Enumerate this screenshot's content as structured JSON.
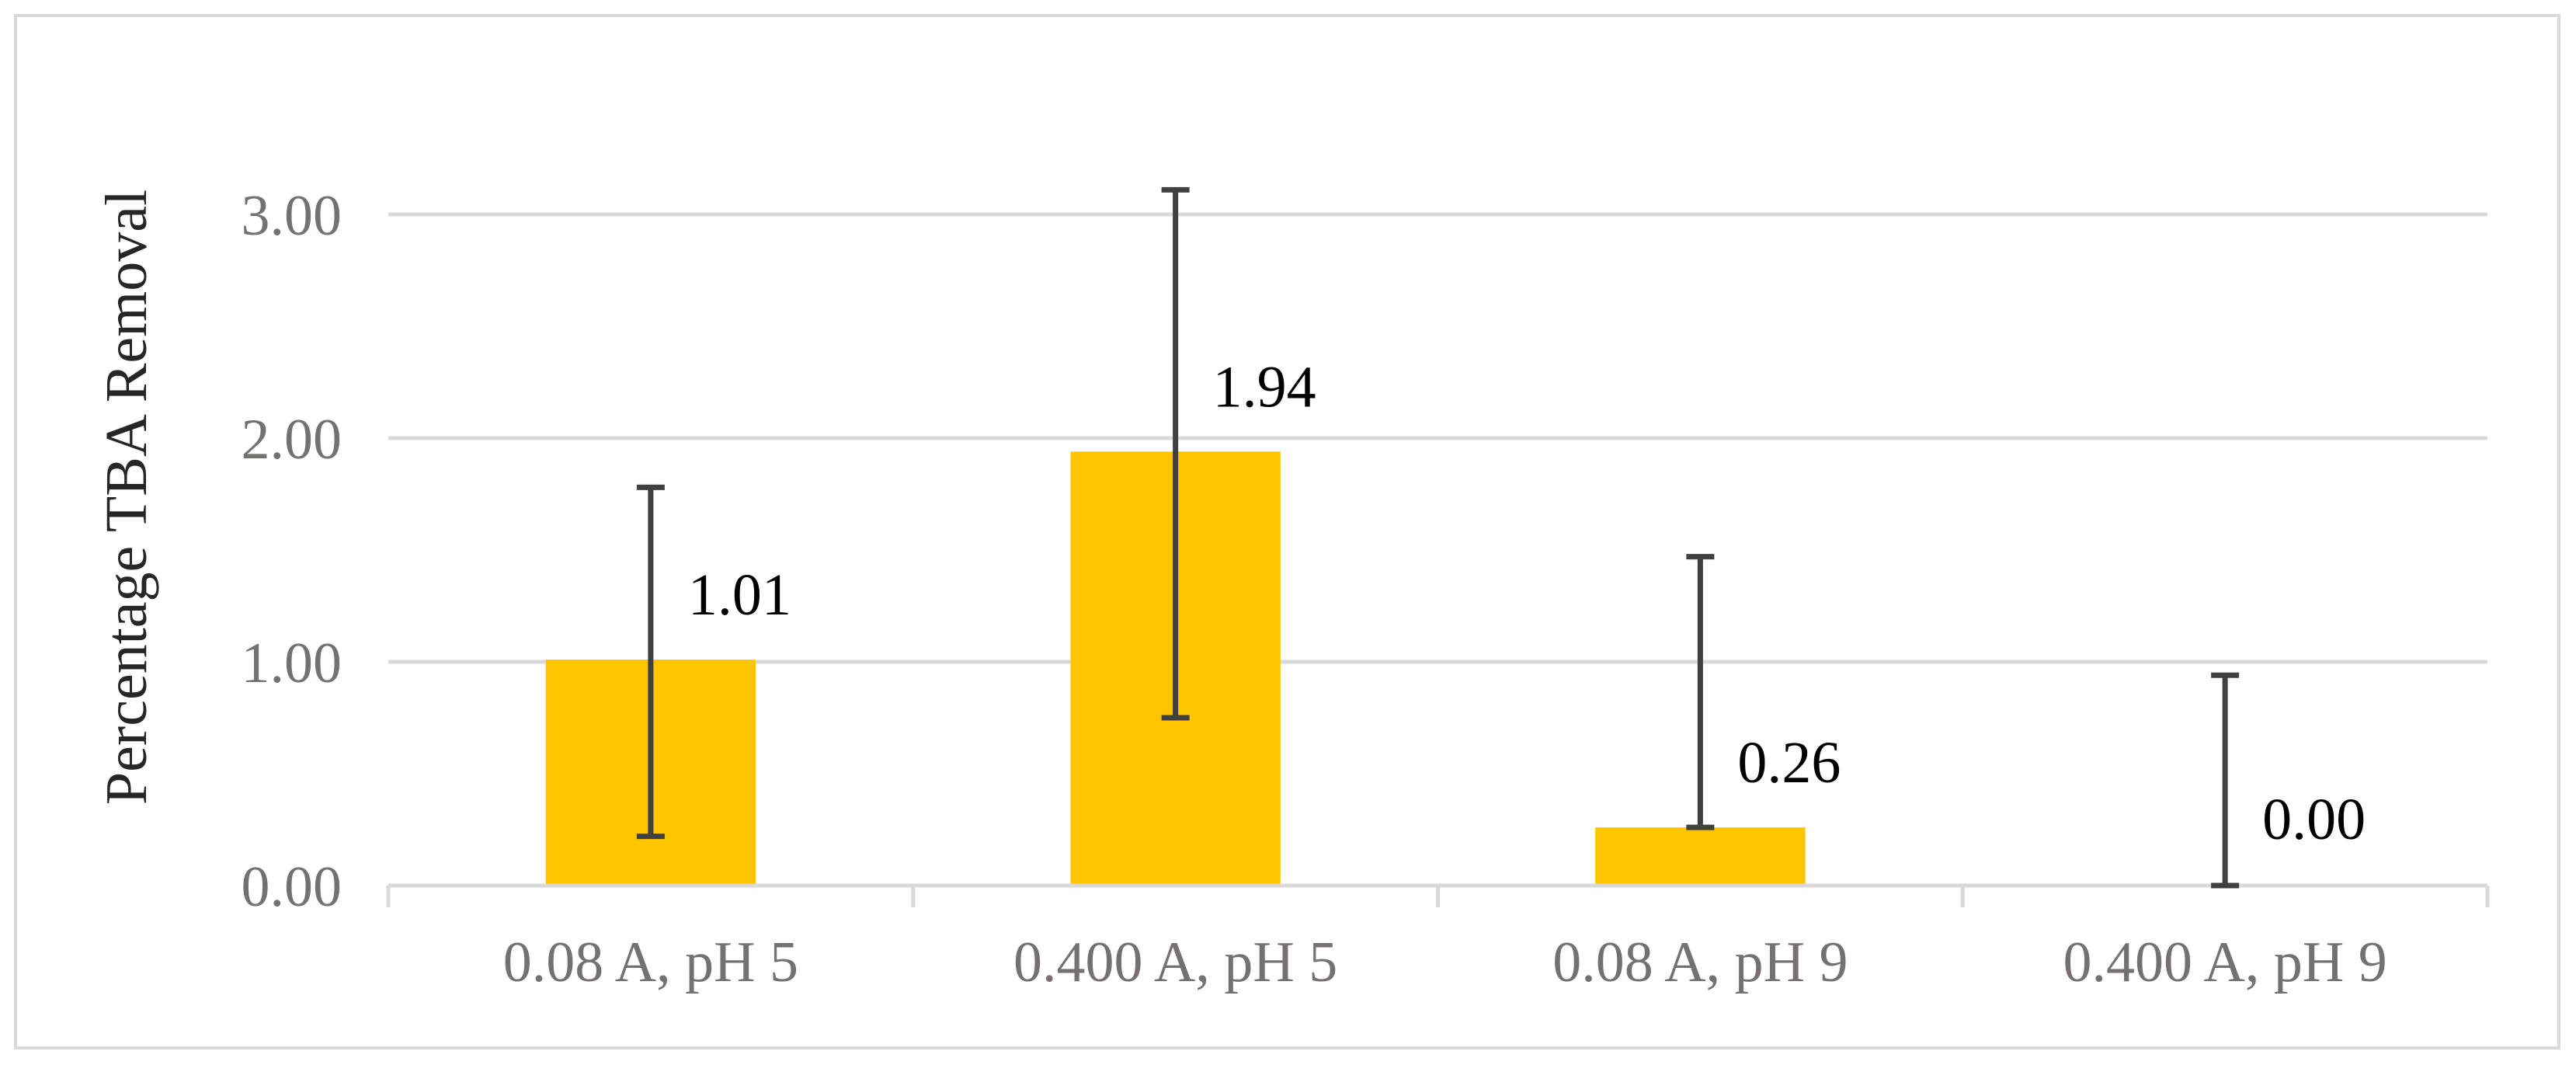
{
  "chart_data": {
    "type": "bar",
    "title": "",
    "xlabel": "",
    "ylabel": "Percentage TBA Removal",
    "categories": [
      "0.08 A, pH 5",
      "0.400 A, pH 5",
      "0.08 A, pH 9",
      "0.400 A, pH 9"
    ],
    "values": [
      1.01,
      1.94,
      0.26,
      0.0
    ],
    "data_labels": [
      "1.01",
      "1.94",
      "0.26",
      "0.00"
    ],
    "error_bars": [
      {
        "low": 0.22,
        "high": 1.78
      },
      {
        "low": 0.75,
        "high": 3.11
      },
      {
        "low": 0.26,
        "high": 1.47
      },
      {
        "low": 0.0,
        "high": 0.94
      }
    ],
    "ylim": [
      0,
      3.0
    ],
    "yticks": [
      "0.00",
      "1.00",
      "2.00",
      "3.00"
    ],
    "grid": true,
    "legend": "none",
    "colors": {
      "bar": "#ffc600",
      "error_bar": "#404040",
      "grid": "#d9d9d9",
      "tick_text": "#767171"
    }
  }
}
